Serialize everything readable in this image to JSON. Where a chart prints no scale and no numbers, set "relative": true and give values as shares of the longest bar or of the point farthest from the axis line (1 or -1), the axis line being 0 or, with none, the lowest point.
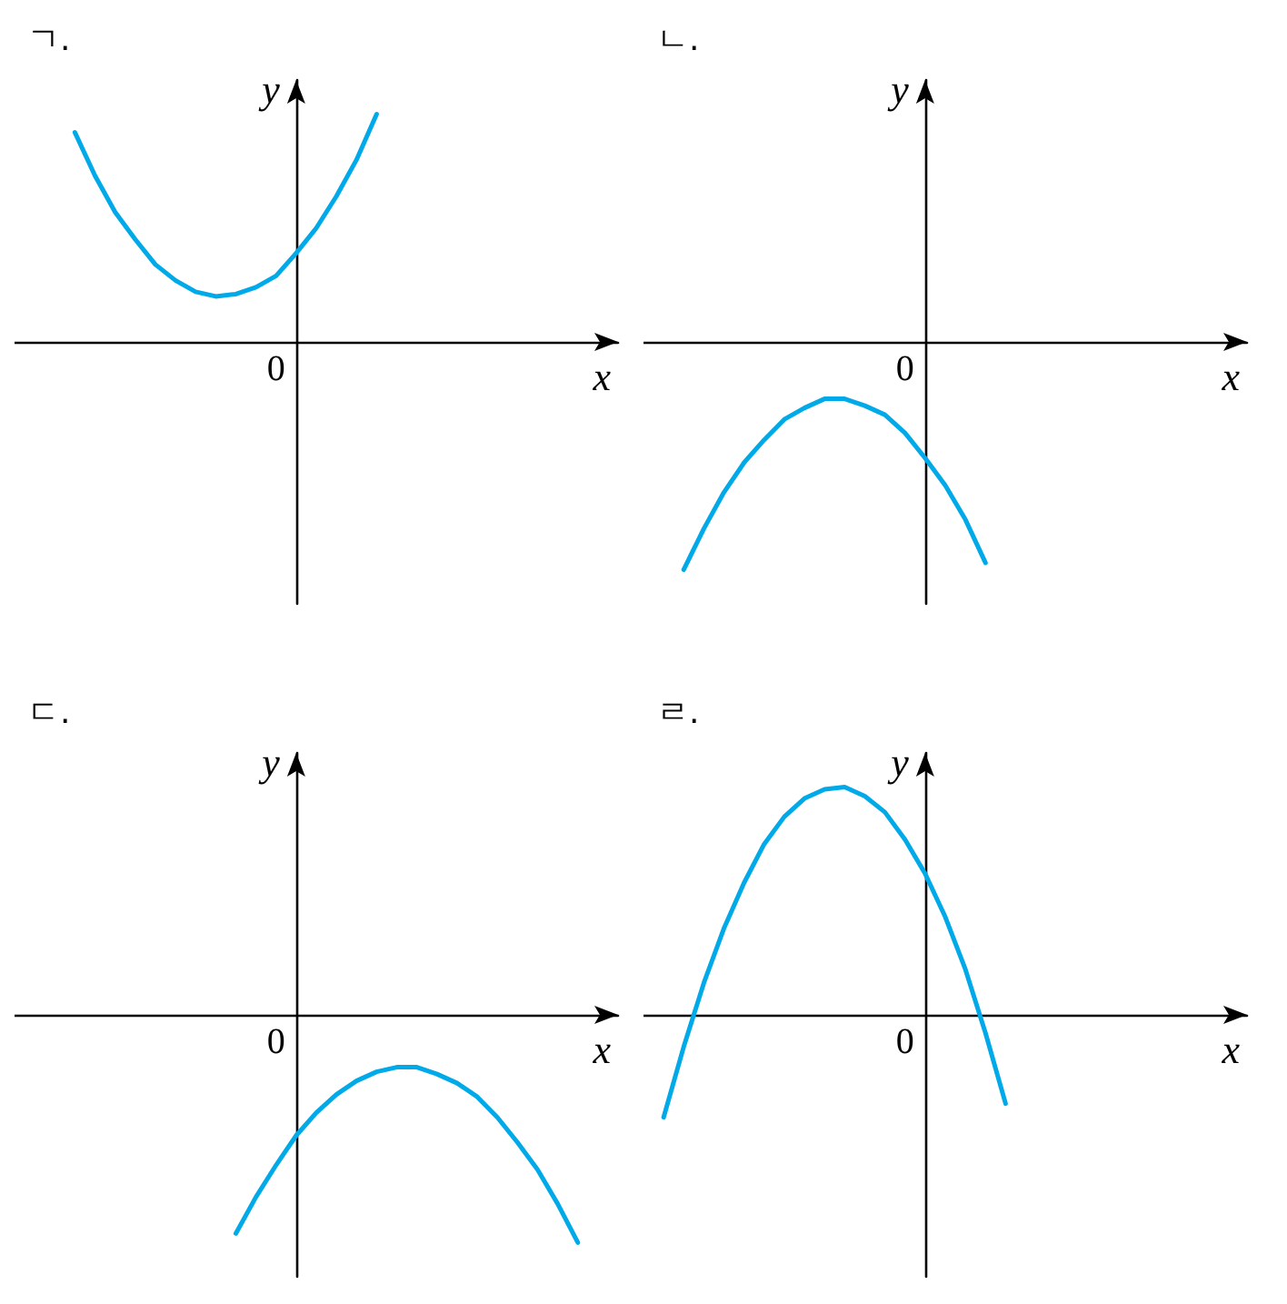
{
  "chart_data": [
    {
      "type": "line",
      "title": "ㄱ.",
      "xlabel": "x",
      "ylabel": "y",
      "relative": true,
      "annotations": [
        "0"
      ],
      "color": "#00a9e8",
      "categories": [
        null,
        null,
        null,
        null,
        null,
        null,
        null,
        null,
        null,
        null,
        null,
        null,
        null,
        null,
        null,
        null,
        null,
        null,
        null,
        null,
        null,
        null,
        null,
        null,
        null,
        null,
        null,
        null,
        null,
        null,
        null
      ],
      "values": [
        null,
        null,
        null,
        0.92,
        0.73,
        0.57,
        0.45,
        0.34,
        0.27,
        0.22,
        0.2,
        0.21,
        0.24,
        0.29,
        0.39,
        0.5,
        0.64,
        0.8,
        1.0,
        null,
        null,
        null,
        null,
        null,
        null,
        null,
        null,
        null,
        null,
        null,
        null
      ]
    },
    {
      "type": "line",
      "title": "ㄴ.",
      "xlabel": "x",
      "ylabel": "y",
      "relative": true,
      "annotations": [
        "0"
      ],
      "color": "#00a9e8",
      "categories": [
        null,
        null,
        null,
        null,
        null,
        null,
        null,
        null,
        null,
        null,
        null,
        null,
        null,
        null,
        null,
        null,
        null,
        null,
        null,
        null,
        null,
        null,
        null,
        null,
        null,
        null,
        null,
        null,
        null,
        null,
        null
      ],
      "values": [
        null,
        null,
        -1.0,
        -0.82,
        -0.66,
        -0.53,
        -0.43,
        -0.34,
        -0.29,
        -0.25,
        -0.25,
        -0.28,
        -0.32,
        -0.4,
        -0.51,
        -0.63,
        -0.78,
        -0.97,
        null,
        null,
        null,
        null,
        null,
        null,
        null,
        null,
        null,
        null,
        null,
        null,
        null
      ]
    },
    {
      "type": "line",
      "title": "ㄷ.",
      "xlabel": "x",
      "ylabel": "y",
      "relative": true,
      "annotations": [
        "0"
      ],
      "color": "#00a9e8",
      "categories": [
        null,
        null,
        null,
        null,
        null,
        null,
        null,
        null,
        null,
        null,
        null,
        null,
        null,
        null,
        null,
        null,
        null,
        null,
        null,
        null,
        null,
        null,
        null,
        null,
        null,
        null,
        null,
        null,
        null,
        null,
        null
      ],
      "values": [
        null,
        null,
        null,
        null,
        null,
        null,
        null,
        null,
        null,
        null,
        null,
        -0.96,
        -0.8,
        -0.66,
        -0.53,
        -0.43,
        -0.35,
        -0.29,
        -0.25,
        -0.23,
        -0.23,
        -0.26,
        -0.3,
        -0.36,
        -0.45,
        -0.56,
        -0.68,
        -0.83,
        -1.0,
        null,
        null
      ]
    },
    {
      "type": "line",
      "title": "ㄹ.",
      "xlabel": "x",
      "ylabel": "y",
      "relative": true,
      "annotations": [
        "0"
      ],
      "color": "#00a9e8",
      "categories": [
        null,
        null,
        null,
        null,
        null,
        null,
        null,
        null,
        null,
        null,
        null,
        null,
        null,
        null,
        null,
        null,
        null,
        null,
        null,
        null,
        null,
        null,
        null,
        null,
        null,
        null,
        null,
        null,
        null,
        null,
        null
      ],
      "values": [
        null,
        -0.45,
        -0.14,
        0.14,
        0.38,
        0.58,
        0.75,
        0.87,
        0.95,
        0.99,
        1.0,
        0.96,
        0.89,
        0.77,
        0.62,
        0.43,
        0.2,
        -0.08,
        -0.39,
        null,
        null,
        null,
        null,
        null,
        null,
        null,
        null,
        null,
        null,
        null,
        null
      ]
    }
  ]
}
